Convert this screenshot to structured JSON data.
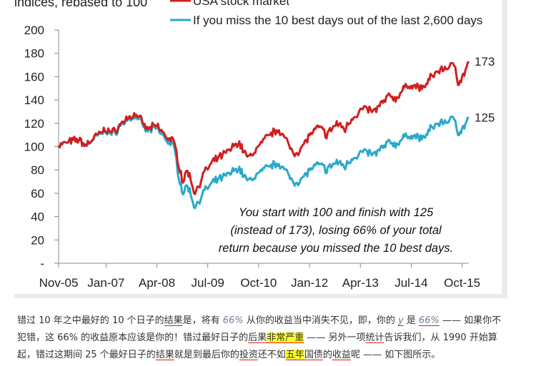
{
  "chart_data": {
    "type": "line",
    "ylabel": "indices, rebased to 100",
    "ylim": [
      0,
      200
    ],
    "yticks": [
      0,
      20,
      40,
      60,
      80,
      100,
      120,
      140,
      160,
      180,
      200
    ],
    "xlim": [
      "2005-11-01",
      "2015-11-30"
    ],
    "xticks": [
      "Nov-05",
      "Jan-07",
      "Apr-08",
      "Jul-09",
      "Oct-10",
      "Jan-12",
      "Apr-13",
      "Jul-14",
      "Oct-15"
    ],
    "xtick_dates": [
      "2005-11-01",
      "2007-01-01",
      "2008-04-01",
      "2009-07-01",
      "2010-10-01",
      "2012-01-01",
      "2013-04-01",
      "2014-07-01",
      "2015-10-01"
    ],
    "legend_position": "top-left",
    "series": [
      {
        "name": "USA stock market",
        "color": "#d01f1f",
        "end_label": "173",
        "points": [
          [
            "2005-11-01",
            101
          ],
          [
            "2006-02-01",
            104
          ],
          [
            "2006-05-01",
            106
          ],
          [
            "2006-07-01",
            101
          ],
          [
            "2006-10-01",
            109
          ],
          [
            "2007-01-01",
            115
          ],
          [
            "2007-03-01",
            112
          ],
          [
            "2007-07-01",
            124
          ],
          [
            "2007-10-01",
            128
          ],
          [
            "2008-01-01",
            115
          ],
          [
            "2008-04-01",
            118
          ],
          [
            "2008-07-01",
            108
          ],
          [
            "2008-09-01",
            104
          ],
          [
            "2008-10-15",
            85
          ],
          [
            "2008-11-20",
            70
          ],
          [
            "2009-01-01",
            80
          ],
          [
            "2009-03-09",
            60
          ],
          [
            "2009-06-01",
            78
          ],
          [
            "2009-09-01",
            88
          ],
          [
            "2010-01-01",
            96
          ],
          [
            "2010-04-01",
            104
          ],
          [
            "2010-07-01",
            90
          ],
          [
            "2010-10-01",
            100
          ],
          [
            "2011-01-01",
            110
          ],
          [
            "2011-04-01",
            115
          ],
          [
            "2011-08-10",
            95
          ],
          [
            "2011-10-01",
            96
          ],
          [
            "2012-01-01",
            110
          ],
          [
            "2012-04-01",
            117
          ],
          [
            "2012-06-01",
            110
          ],
          [
            "2012-09-01",
            120
          ],
          [
            "2012-11-15",
            115
          ],
          [
            "2013-01-01",
            123
          ],
          [
            "2013-05-01",
            133
          ],
          [
            "2013-08-01",
            130
          ],
          [
            "2013-12-31",
            145
          ],
          [
            "2014-02-01",
            140
          ],
          [
            "2014-06-01",
            153
          ],
          [
            "2014-10-15",
            150
          ],
          [
            "2014-12-31",
            160
          ],
          [
            "2015-03-01",
            165
          ],
          [
            "2015-05-20",
            168
          ],
          [
            "2015-08-01",
            170
          ],
          [
            "2015-08-25",
            155
          ],
          [
            "2015-09-30",
            158
          ],
          [
            "2015-11-30",
            173
          ]
        ]
      },
      {
        "name": "If you miss the 10 best days out of the last 2,600 days",
        "color": "#2aa9c9",
        "end_label": "125",
        "points": [
          [
            "2005-11-01",
            101
          ],
          [
            "2006-02-01",
            104
          ],
          [
            "2006-05-01",
            106
          ],
          [
            "2006-07-01",
            101
          ],
          [
            "2006-10-01",
            108
          ],
          [
            "2007-01-01",
            114
          ],
          [
            "2007-03-01",
            110
          ],
          [
            "2007-07-01",
            123
          ],
          [
            "2007-10-01",
            126
          ],
          [
            "2008-01-01",
            113
          ],
          [
            "2008-04-01",
            116
          ],
          [
            "2008-07-01",
            105
          ],
          [
            "2008-09-01",
            100
          ],
          [
            "2008-10-15",
            75
          ],
          [
            "2008-11-20",
            60
          ],
          [
            "2009-01-01",
            67
          ],
          [
            "2009-03-09",
            48
          ],
          [
            "2009-06-01",
            62
          ],
          [
            "2009-09-01",
            70
          ],
          [
            "2010-01-01",
            76
          ],
          [
            "2010-04-01",
            82
          ],
          [
            "2010-07-01",
            70
          ],
          [
            "2010-10-01",
            77
          ],
          [
            "2011-01-01",
            83
          ],
          [
            "2011-04-01",
            86
          ],
          [
            "2011-08-10",
            70
          ],
          [
            "2011-10-01",
            70
          ],
          [
            "2012-01-01",
            80
          ],
          [
            "2012-04-01",
            85
          ],
          [
            "2012-06-01",
            80
          ],
          [
            "2012-09-01",
            87
          ],
          [
            "2012-11-15",
            83
          ],
          [
            "2013-01-01",
            89
          ],
          [
            "2013-05-01",
            96
          ],
          [
            "2013-08-01",
            93
          ],
          [
            "2013-12-31",
            105
          ],
          [
            "2014-02-01",
            101
          ],
          [
            "2014-06-01",
            110
          ],
          [
            "2014-10-15",
            107
          ],
          [
            "2014-12-31",
            116
          ],
          [
            "2015-03-01",
            120
          ],
          [
            "2015-05-20",
            122
          ],
          [
            "2015-08-01",
            124
          ],
          [
            "2015-08-25",
            112
          ],
          [
            "2015-09-30",
            114
          ],
          [
            "2015-11-30",
            125
          ]
        ]
      }
    ],
    "annotation": [
      "You start with 100 and finish with 125",
      "(instead of 173), losing 66% of your total",
      "return because you missed the 10 best days."
    ]
  },
  "paragraph": {
    "p1": "错过 10 年之中最好的 10 个日子的",
    "p2": "结果",
    "p3": "是，将有 ",
    "p4": "66%",
    "p5": " 从你的收益当中消失不见，即，你的 ",
    "p6": "y",
    "p7": " 是 ",
    "p8": "66%",
    "p9": " —— 如果你不",
    "p10": "犯错，这 66% 的收益原本应该是你的！错过最好日子的",
    "p11": "后果",
    "p12": "非常严重",
    "p13": " —— 另外一项",
    "p14": "统计",
    "p15": "告诉我们，从 1990 开始算",
    "p16": "起，错过这期间 25 个最好日子的",
    "p17": "结果",
    "p18": "就是到最后你的",
    "p19": "投资",
    "p20": "还不如",
    "p21": "五年",
    "p22": "国债",
    "p23": "的",
    "p24": "收益",
    "p25": "呢 —— 如下图所示。"
  }
}
